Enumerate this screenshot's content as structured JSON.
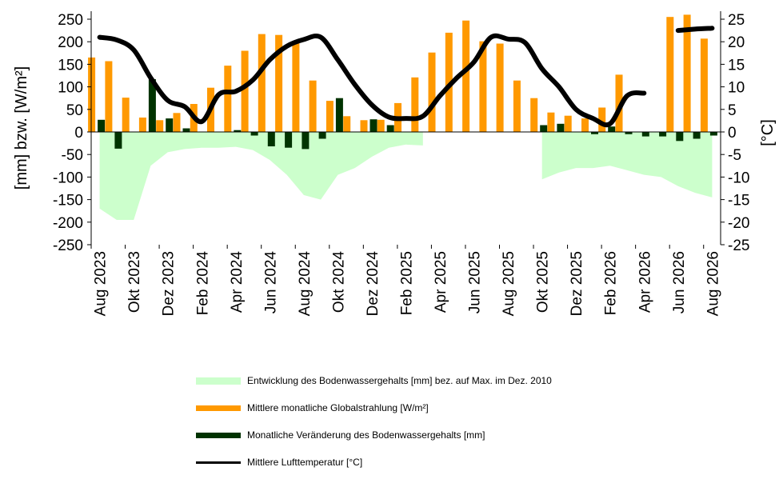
{
  "chart_data": {
    "type": "bar",
    "x_labels": [
      "Aug 2023",
      "Okt 2023",
      "Dez 2023",
      "Feb 2024",
      "Apr 2024",
      "Jun 2024",
      "Aug 2024",
      "Okt 2024",
      "Dez 2024",
      "Feb 2025",
      "Apr 2025",
      "Jun 2025",
      "Aug 2025",
      "Okt 2025",
      "Dez 2025",
      "Feb 2026",
      "Apr 2026",
      "Jun 2026",
      "Aug 2026"
    ],
    "months": [
      "Aug 2023",
      "Sep 2023",
      "Okt 2023",
      "Nov 2023",
      "Dez 2023",
      "Jan 2024",
      "Feb 2024",
      "Mär 2024",
      "Apr 2024",
      "Mai 2024",
      "Jun 2024",
      "Jul 2024",
      "Aug 2024",
      "Sep 2024",
      "Okt 2024",
      "Nov 2024",
      "Dez 2024",
      "Jan 2025",
      "Feb 2025",
      "Mär 2025",
      "Apr 2025",
      "Mai 2025",
      "Jun 2025",
      "Jul 2025",
      "Aug 2025",
      "Sep 2025",
      "Okt 2025",
      "Nov 2025",
      "Dez 2025",
      "Jan 2026",
      "Feb 2026",
      "Mär 2026",
      "Apr 2026",
      "Mai 2026",
      "Jun 2026",
      "Jul 2026",
      "Aug 2026"
    ],
    "ylabel_left": "[mm] bzw. [W/m²]",
    "ylabel_right": "[°C]",
    "ylim_left": [
      -250,
      250
    ],
    "ylim_right": [
      -25,
      25
    ],
    "yticks_left": [
      "250",
      "200",
      "150",
      "100",
      "50",
      "0",
      "-50",
      "-100",
      "-150",
      "-200",
      "-250"
    ],
    "yticks_right": [
      "25",
      "20",
      "15",
      "10",
      "5",
      "0",
      "-5",
      "-10",
      "-15",
      "-20",
      "-25"
    ],
    "series": [
      {
        "name": "Entwicklung des Bodenwassergehalts [mm] bez. auf Max. im Dez. 2010",
        "kind": "area",
        "color": "#ccffcc",
        "axis": "left",
        "values": [
          -170,
          -195,
          -195,
          -75,
          -45,
          -38,
          -35,
          -35,
          -33,
          -40,
          -62,
          -95,
          -140,
          -150,
          -95,
          -80,
          -55,
          -35,
          -28,
          -30,
          null,
          null,
          null,
          null,
          null,
          null,
          -105,
          -90,
          -80,
          -80,
          -75,
          -85,
          -95,
          -100,
          -120,
          -135,
          -145
        ]
      },
      {
        "name": "Mittlere monatliche Globalstrahlung [W/m²]",
        "kind": "bar",
        "color": "#ff9900",
        "axis": "left",
        "values": [
          165,
          157,
          76,
          32,
          26,
          42,
          62,
          98,
          147,
          180,
          217,
          215,
          197,
          114,
          69,
          35,
          26,
          27,
          64,
          121,
          176,
          220,
          247,
          201,
          196,
          114,
          75,
          43,
          36,
          30,
          54,
          127,
          null,
          null,
          255,
          260,
          207
        ]
      },
      {
        "name": "Monatliche Veränderung des Bodenwassergehalts [mm]",
        "kind": "bar",
        "color": "#003300",
        "axis": "left",
        "values": [
          27,
          -37,
          0,
          117,
          30,
          8,
          0,
          0,
          4,
          -8,
          -32,
          -35,
          -38,
          -15,
          75,
          0,
          28,
          15,
          0,
          0,
          0,
          0,
          0,
          0,
          0,
          0,
          15,
          18,
          0,
          -5,
          12,
          -5,
          -10,
          -10,
          -20,
          -15,
          -8
        ]
      },
      {
        "name": "Mittlere Lufttemperatur [°C]",
        "kind": "line",
        "color": "#000000",
        "axis": "right",
        "values": [
          21,
          20.4,
          18.2,
          12,
          7,
          5.6,
          2.3,
          8.3,
          9,
          11.5,
          16,
          19,
          20.5,
          21,
          16,
          10.5,
          6,
          3.3,
          3,
          3.5,
          8,
          12,
          15.5,
          21,
          20.6,
          19.8,
          14,
          10,
          5,
          3,
          1.8,
          8,
          8.6,
          null,
          22.5,
          22.8,
          23
        ]
      }
    ],
    "legend": [
      "Entwicklung des Bodenwassergehalts [mm] bez. auf Max. im Dez. 2010",
      "Mittlere monatliche Globalstrahlung [W/m²]",
      "Monatliche Veränderung des Bodenwassergehalts [mm]",
      "Mittlere Lufttemperatur [°C]"
    ],
    "legend_position": "bottom",
    "grid": false
  }
}
